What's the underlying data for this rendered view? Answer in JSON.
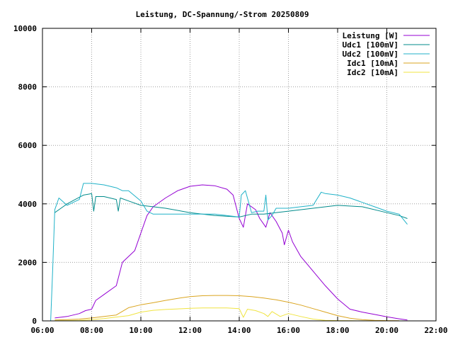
{
  "chart_data": {
    "type": "line",
    "title": "Leistung, DC-Spannung/-Strom 20250809",
    "xlabel": "",
    "ylabel": "",
    "xlim": [
      "06:00",
      "22:00"
    ],
    "ylim": [
      0,
      10000
    ],
    "x_ticks": [
      "06:00",
      "08:00",
      "10:00",
      "12:00",
      "14:00",
      "16:00",
      "18:00",
      "20:00",
      "22:00"
    ],
    "y_ticks": [
      "0",
      "2000",
      "4000",
      "6000",
      "8000",
      "10000"
    ],
    "grid": true,
    "legend_position": "top-right",
    "series": [
      {
        "name": "Leistung [W]",
        "color": "#9400d3",
        "x": [
          "06:30",
          "07:00",
          "07:30",
          "07:45",
          "08:00",
          "08:10",
          "08:30",
          "09:00",
          "09:15",
          "09:30",
          "09:45",
          "10:00",
          "10:15",
          "10:30",
          "11:00",
          "11:30",
          "12:00",
          "12:30",
          "13:00",
          "13:30",
          "13:45",
          "14:00",
          "14:10",
          "14:20",
          "14:40",
          "14:50",
          "15:00",
          "15:05",
          "15:15",
          "15:30",
          "15:45",
          "15:50",
          "16:00",
          "16:10",
          "16:30",
          "17:00",
          "17:30",
          "18:00",
          "18:30",
          "19:00",
          "19:30",
          "20:00",
          "20:30",
          "20:50"
        ],
        "values": [
          100,
          150,
          250,
          350,
          400,
          700,
          900,
          1200,
          2000,
          2200,
          2400,
          3000,
          3600,
          3900,
          4200,
          4450,
          4600,
          4650,
          4620,
          4500,
          4300,
          3500,
          3200,
          4000,
          3800,
          3500,
          3300,
          3200,
          3700,
          3400,
          3000,
          2600,
          3100,
          2700,
          2200,
          1700,
          1200,
          750,
          400,
          300,
          220,
          140,
          70,
          30
        ]
      },
      {
        "name": "Udc1 [100mV]",
        "color": "#008b8b",
        "x": [
          "06:30",
          "06:45",
          "07:00",
          "07:20",
          "07:40",
          "08:00",
          "08:05",
          "08:10",
          "08:30",
          "09:00",
          "09:05",
          "09:10",
          "09:30",
          "10:00",
          "10:30",
          "11:00",
          "12:00",
          "13:00",
          "14:00",
          "14:30",
          "15:00",
          "16:00",
          "17:00",
          "18:00",
          "19:00",
          "20:00",
          "20:30",
          "20:50"
        ],
        "values": [
          3700,
          3850,
          4000,
          4150,
          4300,
          4350,
          3750,
          4250,
          4250,
          4150,
          3750,
          4200,
          4100,
          3950,
          3900,
          3850,
          3700,
          3600,
          3550,
          3650,
          3650,
          3750,
          3850,
          3950,
          3900,
          3700,
          3600,
          3500
        ]
      },
      {
        "name": "Udc2 [100mV]",
        "color": "#20b2c8",
        "x": [
          "06:20",
          "06:25",
          "06:30",
          "06:40",
          "07:00",
          "07:30",
          "07:40",
          "08:00",
          "08:30",
          "09:00",
          "09:15",
          "09:30",
          "10:00",
          "10:15",
          "10:30",
          "11:00",
          "12:00",
          "13:00",
          "14:00",
          "14:05",
          "14:15",
          "14:30",
          "14:45",
          "15:00",
          "15:05",
          "15:10",
          "15:20",
          "15:30",
          "16:00",
          "16:30",
          "17:00",
          "17:20",
          "17:30",
          "18:00",
          "18:30",
          "19:00",
          "19:30",
          "20:00",
          "20:30",
          "20:50"
        ],
        "values": [
          0,
          1800,
          3800,
          4200,
          3950,
          4150,
          4700,
          4700,
          4650,
          4550,
          4450,
          4450,
          4100,
          3750,
          3650,
          3650,
          3650,
          3650,
          3550,
          4300,
          4450,
          3700,
          3750,
          3750,
          4300,
          3450,
          3600,
          3850,
          3850,
          3900,
          3950,
          4400,
          4350,
          4300,
          4200,
          4050,
          3900,
          3750,
          3650,
          3300
        ]
      },
      {
        "name": "Idc1 [10mA]",
        "color": "#daa520",
        "x": [
          "06:30",
          "07:00",
          "07:30",
          "08:00",
          "08:30",
          "09:00",
          "09:30",
          "10:00",
          "10:30",
          "11:00",
          "11:30",
          "12:00",
          "12:30",
          "13:00",
          "13:30",
          "14:00",
          "14:30",
          "15:00",
          "15:30",
          "16:00",
          "16:30",
          "17:00",
          "17:30",
          "18:00",
          "18:30",
          "19:00",
          "19:30",
          "20:00",
          "20:30"
        ],
        "values": [
          30,
          40,
          60,
          100,
          150,
          200,
          450,
          550,
          620,
          700,
          770,
          830,
          860,
          870,
          870,
          860,
          830,
          780,
          720,
          640,
          540,
          420,
          300,
          180,
          90,
          40,
          20,
          10,
          5
        ]
      },
      {
        "name": "Idc2 [10mA]",
        "color": "#f0e442",
        "x": [
          "06:30",
          "07:00",
          "07:30",
          "08:00",
          "08:30",
          "09:00",
          "09:30",
          "10:00",
          "10:30",
          "11:00",
          "11:30",
          "12:00",
          "12:30",
          "13:00",
          "13:30",
          "14:00",
          "14:10",
          "14:20",
          "14:40",
          "15:00",
          "15:10",
          "15:20",
          "15:40",
          "15:50",
          "16:00",
          "16:30",
          "17:00",
          "17:30",
          "18:00",
          "18:30",
          "19:00",
          "19:30",
          "20:00"
        ],
        "values": [
          5,
          10,
          20,
          40,
          80,
          130,
          180,
          300,
          360,
          390,
          410,
          430,
          440,
          440,
          440,
          420,
          120,
          400,
          350,
          250,
          150,
          320,
          150,
          200,
          250,
          150,
          60,
          20,
          10,
          5,
          3,
          2,
          1
        ]
      }
    ]
  }
}
